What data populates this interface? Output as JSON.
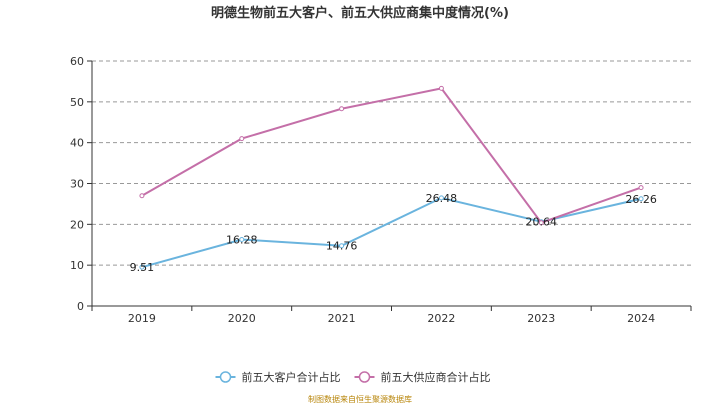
{
  "chart_data": {
    "type": "line",
    "title": "明德生物前五大客户、前五大供应商集中度情况(%)",
    "categories": [
      "2019",
      "2020",
      "2021",
      "2022",
      "2023",
      "2024"
    ],
    "ylim": [
      0,
      60
    ],
    "yticks": [
      0,
      10,
      20,
      30,
      40,
      50,
      60
    ],
    "grid": true,
    "legend_position": "bottom-center",
    "series": [
      {
        "name": "前五大客户合计占比",
        "color": "#6ab4de",
        "values": [
          9.51,
          16.28,
          14.76,
          26.48,
          20.64,
          26.26
        ],
        "labels": [
          "9.51",
          "16.28",
          "14.76",
          "26.48",
          "20.64",
          "26.26"
        ]
      },
      {
        "name": "前五大供应商合计占比",
        "color": "#c46fa8",
        "values": [
          27.0,
          41.0,
          48.3,
          53.3,
          20.4,
          29.0
        ]
      }
    ]
  },
  "source_note": "制图数据来自恒生聚源数据库"
}
